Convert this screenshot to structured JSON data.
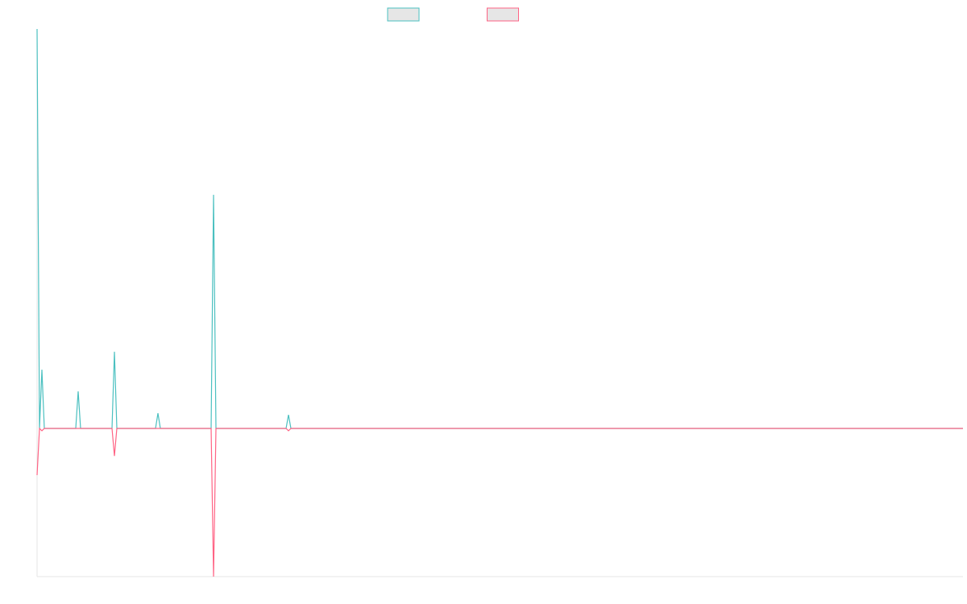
{
  "chart_data": {
    "type": "line",
    "x": [
      0,
      1,
      2,
      3,
      16,
      17,
      18,
      31,
      32,
      33,
      49,
      50,
      51,
      72,
      73,
      74,
      100,
      103,
      104,
      105,
      383
    ],
    "series": [
      {
        "color": "#4bc0c0",
        "values": [
          100,
          0,
          14.7,
          0,
          0,
          9.3,
          0,
          0,
          19.2,
          0,
          0,
          3.8,
          0,
          0,
          58.5,
          0,
          0,
          0,
          3.4,
          0,
          0
        ]
      },
      {
        "color": "#ff6384",
        "values": [
          -11.7,
          0,
          -0.6,
          0,
          0,
          0,
          0,
          0,
          -6.9,
          0,
          0,
          0,
          0,
          0,
          -37.1,
          0,
          0,
          0,
          -0.6,
          0,
          0
        ]
      }
    ],
    "xlim": [
      0,
      383
    ],
    "ylim": [
      -37.1,
      100
    ],
    "legend": "top"
  }
}
